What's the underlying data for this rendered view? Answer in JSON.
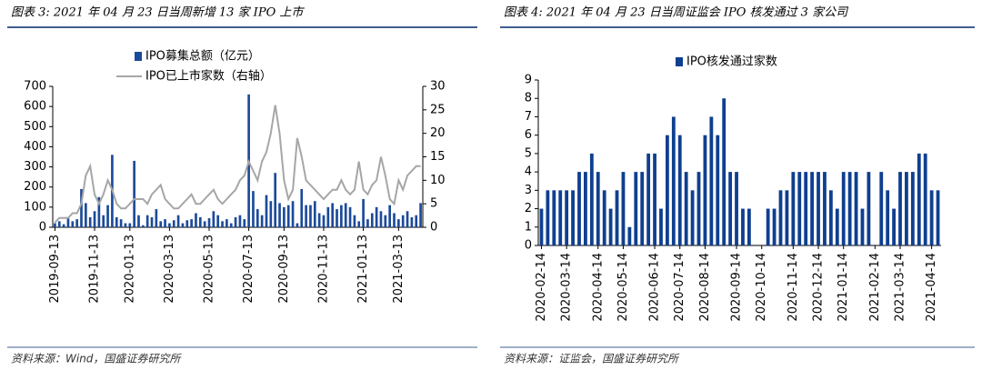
{
  "chart_data": [
    {
      "type": "bar",
      "title": "图表 3: 2021 年 04 月 23 日当周新增 13 家 IPO 上市",
      "source": "资料来源：Wind，国盛证券研究所",
      "categories": [
        "2019-09-13",
        null,
        null,
        null,
        null,
        null,
        null,
        null,
        null,
        "2019-11-13",
        null,
        null,
        null,
        null,
        null,
        null,
        null,
        "2020-01-13",
        null,
        null,
        null,
        null,
        null,
        null,
        null,
        null,
        "2020-03-13",
        null,
        null,
        null,
        null,
        null,
        null,
        null,
        null,
        "2020-05-13",
        null,
        null,
        null,
        null,
        null,
        null,
        null,
        null,
        "2020-07-13",
        null,
        null,
        null,
        null,
        null,
        null,
        null,
        "2020-09-13",
        null,
        null,
        null,
        null,
        null,
        null,
        null,
        null,
        "2020-11-13",
        null,
        null,
        null,
        null,
        null,
        null,
        null,
        null,
        "2021-01-13",
        null,
        null,
        null,
        null,
        null,
        null,
        null,
        "2021-03-13",
        null,
        null,
        null,
        null,
        null
      ],
      "series": [
        {
          "name": "IPO募集总额（亿元）",
          "type": "bar",
          "color": "#1c4a9a",
          "values": [
            20,
            30,
            15,
            45,
            30,
            40,
            190,
            120,
            50,
            80,
            150,
            60,
            110,
            360,
            50,
            40,
            20,
            20,
            330,
            60,
            10,
            60,
            50,
            90,
            30,
            40,
            20,
            35,
            60,
            20,
            35,
            40,
            70,
            50,
            30,
            45,
            80,
            60,
            30,
            40,
            20,
            50,
            60,
            40,
            660,
            180,
            90,
            60,
            160,
            130,
            270,
            120,
            100,
            110,
            130,
            20,
            190,
            110,
            110,
            130,
            70,
            60,
            100,
            120,
            90,
            110,
            120,
            100,
            60,
            30,
            140,
            40,
            70,
            100,
            80,
            60,
            110,
            70,
            40,
            60,
            80,
            50,
            60,
            120
          ]
        },
        {
          "name": "IPO已上市家数（右轴）",
          "type": "line",
          "axis": "y2",
          "color": "#a6a6a6",
          "values": [
            1,
            2,
            2,
            2,
            3,
            3,
            5,
            11,
            13,
            7,
            5,
            7,
            10,
            8,
            5,
            4,
            4,
            5,
            6,
            6,
            6,
            5,
            7,
            8,
            9,
            6,
            5,
            4,
            4,
            5,
            6,
            7,
            5,
            5,
            6,
            7,
            8,
            6,
            5,
            6,
            7,
            8,
            10,
            11,
            14,
            12,
            10,
            14,
            16,
            20,
            26,
            20,
            10,
            6,
            8,
            19,
            15,
            10,
            9,
            8,
            7,
            6,
            7,
            8,
            8,
            10,
            8,
            7,
            8,
            14,
            8,
            7,
            9,
            10,
            15,
            11,
            6,
            5,
            10,
            8,
            11,
            12,
            13,
            13
          ]
        }
      ],
      "ylim": [
        0,
        700
      ],
      "yticks": [
        0,
        100,
        200,
        300,
        400,
        500,
        600,
        700
      ],
      "y2lim": [
        0,
        30
      ],
      "y2ticks": [
        0,
        5,
        10,
        15,
        20,
        25,
        30
      ],
      "legend": "top"
    },
    {
      "type": "bar",
      "title": "图表 4: 2021 年 04 月 23 日当周证监会 IPO 核发通过 3 家公司",
      "source": "资料来源：证监会，国盛证券研究所",
      "categories": [
        "2020-02-14",
        null,
        null,
        null,
        "2020-03-14",
        null,
        null,
        null,
        null,
        "2020-04-14",
        null,
        null,
        null,
        "2020-05-14",
        null,
        null,
        null,
        null,
        "2020-06-14",
        null,
        null,
        null,
        "2020-07-14",
        null,
        null,
        null,
        "2020-08-14",
        null,
        null,
        null,
        null,
        "2020-09-14",
        null,
        null,
        null,
        "2020-10-14",
        null,
        null,
        null,
        null,
        "2020-11-14",
        null,
        null,
        null,
        "2020-12-14",
        null,
        null,
        null,
        "2021-01-14",
        null,
        null,
        null,
        null,
        "2021-02-14",
        null,
        null,
        null,
        "2021-03-14",
        null,
        null,
        null,
        null,
        "2021-04-14",
        null
      ],
      "series": [
        {
          "name": "IPO核发通过家数",
          "type": "bar",
          "color": "#0f3f8f",
          "values": [
            2,
            3,
            3,
            3,
            3,
            3,
            4,
            4,
            5,
            4,
            3,
            2,
            3,
            4,
            1,
            4,
            4,
            5,
            5,
            2,
            6,
            7,
            6,
            4,
            3,
            4,
            6,
            7,
            6,
            8,
            4,
            4,
            2,
            2,
            0,
            0,
            2,
            2,
            3,
            3,
            4,
            4,
            4,
            4,
            4,
            4,
            3,
            2,
            4,
            4,
            4,
            2,
            4,
            0,
            4,
            3,
            2,
            4,
            4,
            4,
            5,
            5,
            3,
            3
          ]
        }
      ],
      "ylim": [
        0,
        9
      ],
      "yticks": [
        0,
        1,
        2,
        3,
        4,
        5,
        6,
        7,
        8,
        9
      ],
      "legend": "top"
    }
  ]
}
